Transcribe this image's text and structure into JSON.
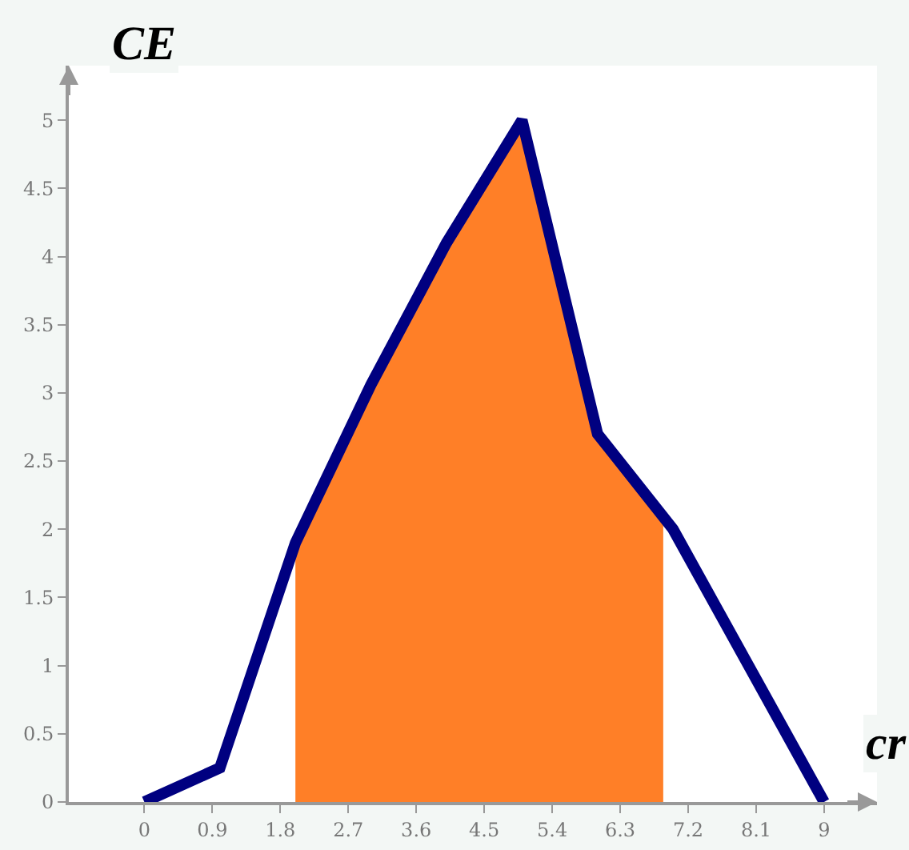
{
  "chart_data": {
    "type": "line",
    "xlabel": "cr",
    "ylabel": "CE",
    "xlim": [
      -1,
      9.7
    ],
    "ylim": [
      0,
      5.4
    ],
    "xticks": [
      0,
      0.9,
      1.8,
      2.7,
      3.6,
      4.5,
      5.4,
      6.3,
      7.2,
      8.1,
      9
    ],
    "yticks": [
      0,
      0.5,
      1,
      1.5,
      2,
      2.5,
      3,
      3.5,
      4,
      4.5,
      5
    ],
    "series": [
      {
        "type": "area",
        "color": "#ff7f27",
        "x": [
          2,
          3,
          4,
          5,
          6,
          6.87
        ],
        "values": [
          1.9,
          3.06,
          4.1,
          5,
          2.7,
          2.09
        ]
      },
      {
        "color": "#000080",
        "x": [
          0,
          1,
          2,
          3,
          4,
          5,
          6,
          7,
          8,
          9
        ],
        "values": [
          0,
          0.25,
          1.9,
          3.06,
          4.1,
          5,
          2.7,
          2,
          1,
          0
        ]
      }
    ]
  }
}
